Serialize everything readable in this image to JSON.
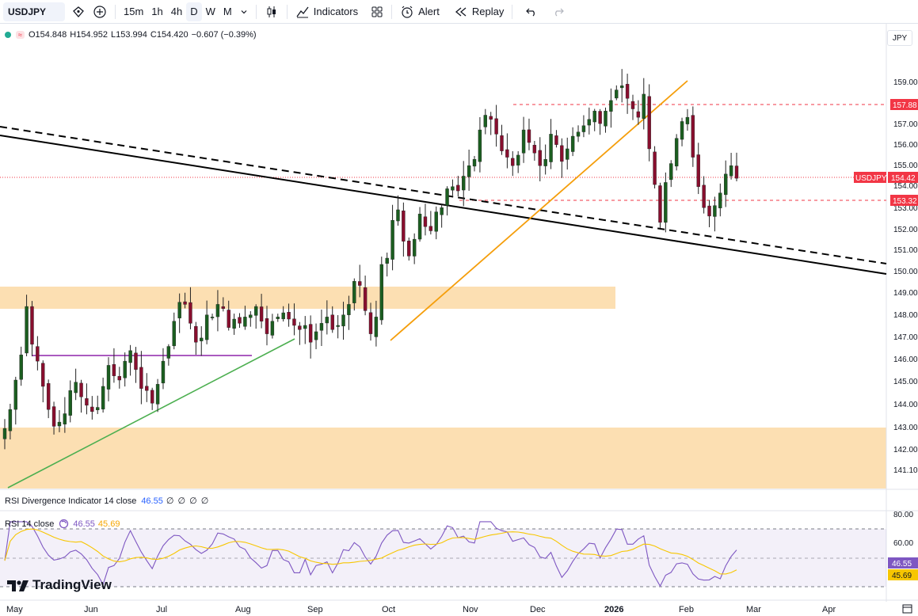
{
  "toolbar": {
    "symbol": "USDJPY",
    "intervals": [
      "15m",
      "1h",
      "4h",
      "D",
      "W",
      "M"
    ],
    "active_interval": "D",
    "indicators_label": "Indicators",
    "alert_label": "Alert",
    "replay_label": "Replay"
  },
  "legend": {
    "open": "O154.848",
    "high": "H154.952",
    "low": "L153.994",
    "close": "C154.420",
    "change": "−0.607 (−0.39%)"
  },
  "currency": "JPY",
  "price_axis": {
    "ticks": [
      "159.00",
      "157.00",
      "156.00",
      "155.00",
      "154.00",
      "153.00",
      "152.00",
      "151.00",
      "150.00",
      "149.00",
      "148.00",
      "147.00",
      "146.00",
      "145.00",
      "144.00",
      "143.00",
      "142.00",
      "141.10"
    ],
    "tags": [
      {
        "label": "157.88",
        "color": "#f23645"
      },
      {
        "label": "USDJPY",
        "value": "154.42",
        "color": "#f23645"
      },
      {
        "label": "153.32",
        "color": "#f23645"
      }
    ]
  },
  "indicators": {
    "rsi_div": {
      "label": "RSI Divergence Indicator 14 close",
      "value": "46.55",
      "extras": "∅ ∅ ∅ ∅"
    },
    "rsi": {
      "label": "RSI 14 close",
      "value": "46.55",
      "ma_value": "45.69"
    }
  },
  "rsi_axis": {
    "ticks": [
      "80.00",
      "60.00"
    ],
    "tags": [
      {
        "label": "46.55",
        "color": "#7e57c2"
      },
      {
        "label": "45.69",
        "color": "#f7c600"
      }
    ]
  },
  "time_axis": [
    "May",
    "Jun",
    "Jul",
    "Aug",
    "Sep",
    "Oct",
    "Nov",
    "Dec",
    "2026",
    "Feb",
    "Mar",
    "Apr"
  ],
  "logo_text": "TradingView",
  "chart_data": {
    "type": "candlestick",
    "symbol": "USDJPY",
    "interval": "D",
    "ylim": [
      140.9,
      159.7
    ],
    "closes_approx": [
      142.5,
      143.4,
      144.8,
      146.0,
      148.3,
      146.5,
      145.7,
      144.5,
      143.4,
      142.6,
      142.8,
      143.2,
      144.3,
      144.7,
      144.0,
      143.6,
      143.3,
      143.5,
      144.5,
      145.5,
      145.0,
      144.8,
      145.7,
      146.2,
      145.3,
      144.4,
      144.3,
      143.7,
      144.6,
      145.7,
      146.4,
      147.6,
      148.5,
      148.4,
      147.5,
      146.6,
      146.8,
      147.9,
      147.8,
      148.4,
      148.2,
      147.3,
      147.7,
      147.5,
      147.8,
      147.9,
      148.3,
      147.6,
      147.0,
      147.6,
      147.8,
      148.0,
      147.7,
      147.4,
      147.2,
      147.4,
      146.6,
      147.1,
      147.5,
      147.8,
      147.2,
      147.4,
      147.9,
      148.4,
      149.5,
      149.3,
      148.1,
      147.0,
      147.8,
      150.3,
      150.6,
      152.4,
      152.9,
      151.4,
      150.7,
      151.5,
      152.7,
      152.1,
      151.9,
      152.8,
      153.0,
      153.9,
      154.0,
      153.8,
      154.5,
      155.0,
      155.3,
      156.7,
      157.4,
      157.2,
      156.5,
      155.7,
      155.4,
      155.0,
      155.5,
      156.7,
      156.1,
      155.6,
      155.0,
      155.3,
      156.5,
      156.0,
      155.2,
      155.8,
      156.4,
      156.6,
      156.9,
      157.2,
      157.6,
      157.0,
      157.6,
      158.1,
      158.6,
      158.8,
      158.2,
      157.7,
      157.3,
      158.4,
      155.8,
      154.1,
      152.3,
      154.2,
      155.1,
      156.3,
      157.1,
      157.3,
      155.4,
      154.0,
      153.0,
      152.6,
      153.1,
      153.7,
      154.6,
      155.0,
      154.4
    ]
  }
}
